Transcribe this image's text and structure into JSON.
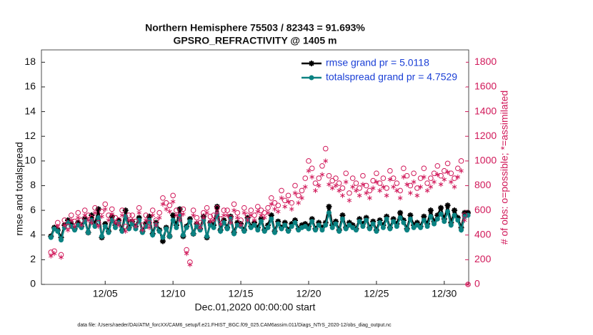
{
  "chart_data": {
    "type": "line",
    "title": "Northern Hemisphere 75503 / 82343 = 91.693%",
    "subtitle": "GPSRO_REFRACTIVITY @ 1405 m",
    "xlabel": "Dec.01,2020 00:00:00 start",
    "ylabel": "rmse and totalspread",
    "y2label": "# of obs: o=possible; *=assimilated",
    "footnote": "data file: /Users/raeder/DAI/ATM_forcXX/CAM6_setup/f.e21.FHIST_BGC.f09_025.CAM6assim.011/Diags_NTrS_2020-12/obs_diag_output.nc",
    "legend": "upper right",
    "xlim": [
      -0.7,
      30.8
    ],
    "xticks": [
      {
        "value": 4,
        "label": "12/05"
      },
      {
        "value": 9,
        "label": "12/10"
      },
      {
        "value": 14,
        "label": "12/15"
      },
      {
        "value": 19,
        "label": "12/20"
      },
      {
        "value": 24,
        "label": "12/25"
      },
      {
        "value": 29,
        "label": "12/30"
      }
    ],
    "ylim": [
      0,
      19
    ],
    "yticks": [
      0,
      2,
      4,
      6,
      8,
      10,
      12,
      14,
      16,
      18
    ],
    "y2lim": [
      0,
      1900
    ],
    "y2ticks": [
      0,
      200,
      400,
      600,
      800,
      1000,
      1200,
      1400,
      1600,
      1800
    ],
    "y2color": "#d1195a",
    "x": [
      0,
      0.25,
      0.5,
      0.75,
      1,
      1.25,
      1.5,
      1.75,
      2,
      2.25,
      2.5,
      2.75,
      3,
      3.25,
      3.5,
      3.75,
      4,
      4.25,
      4.5,
      4.75,
      5,
      5.25,
      5.5,
      5.75,
      6,
      6.25,
      6.5,
      6.75,
      7,
      7.25,
      7.5,
      7.75,
      8,
      8.25,
      8.5,
      8.75,
      9,
      9.25,
      9.5,
      9.75,
      10,
      10.25,
      10.5,
      10.75,
      11,
      11.25,
      11.5,
      11.75,
      12,
      12.25,
      12.5,
      12.75,
      13,
      13.25,
      13.5,
      13.75,
      14,
      14.25,
      14.5,
      14.75,
      15,
      15.25,
      15.5,
      15.75,
      16,
      16.25,
      16.5,
      16.75,
      17,
      17.25,
      17.5,
      17.75,
      18,
      18.25,
      18.5,
      18.75,
      19,
      19.25,
      19.5,
      19.75,
      20,
      20.25,
      20.5,
      20.75,
      21,
      21.25,
      21.5,
      21.75,
      22,
      22.25,
      22.5,
      22.75,
      23,
      23.25,
      23.5,
      23.75,
      24,
      24.25,
      24.5,
      24.75,
      25,
      25.25,
      25.5,
      25.75,
      26,
      26.25,
      26.5,
      26.75,
      27,
      27.25,
      27.5,
      27.75,
      28,
      28.25,
      28.5,
      28.75,
      29,
      29.25,
      29.5,
      29.75,
      30,
      30.25,
      30.5,
      30.75
    ],
    "series": [
      {
        "name": "rmse grand pr = 5.0118",
        "color": "#000000",
        "marker": "star",
        "axis": "y",
        "values": [
          3.9,
          4.6,
          4.4,
          3.8,
          4.8,
          5.2,
          4.9,
          4.5,
          5.0,
          4.7,
          5.3,
          4.2,
          5.6,
          4.9,
          6.1,
          3.8,
          4.9,
          4.3,
          5.5,
          4.8,
          5.2,
          4.4,
          6.0,
          4.6,
          5.1,
          4.7,
          5.4,
          4.3,
          4.9,
          5.5,
          4.1,
          5.0,
          4.4,
          3.5,
          4.6,
          3.9,
          5.6,
          4.8,
          6.1,
          3.9,
          4.7,
          5.3,
          4.1,
          4.9,
          4.5,
          5.5,
          3.8,
          5.0,
          4.8,
          6.3,
          4.4,
          5.2,
          4.6,
          5.5,
          4.2,
          5.0,
          4.9,
          4.4,
          5.4,
          4.7,
          5.0,
          4.6,
          5.3,
          4.4,
          4.8,
          5.6,
          4.3,
          5.1,
          4.6,
          5.0,
          4.4,
          4.9,
          5.2,
          4.5,
          4.8,
          4.9,
          4.7,
          5.3,
          4.5,
          5.0,
          4.6,
          5.0,
          6.3,
          4.8,
          5.1,
          4.4,
          5.6,
          4.6,
          5.0,
          4.8,
          4.5,
          5.3,
          4.9,
          5.4,
          4.6,
          5.1,
          4.4,
          5.2,
          4.8,
          5.5,
          4.6,
          5.3,
          4.9,
          5.8,
          5.2,
          4.5,
          5.6,
          4.8,
          5.0,
          4.7,
          5.5,
          4.9,
          6.0,
          5.1,
          5.6,
          6.2,
          5.3,
          6.4,
          5.0,
          6.0,
          5.4,
          4.6,
          5.8,
          5.8
        ]
      },
      {
        "name": "totalspread grand pr = 4.7529",
        "color": "#0b8282",
        "marker": "circle",
        "axis": "y",
        "values": [
          3.8,
          4.5,
          4.3,
          3.6,
          4.6,
          5.0,
          4.7,
          4.4,
          4.8,
          4.6,
          5.1,
          4.2,
          5.2,
          4.7,
          5.4,
          3.9,
          4.7,
          4.2,
          5.2,
          4.6,
          5.0,
          4.3,
          5.5,
          4.5,
          4.9,
          4.5,
          5.2,
          4.2,
          4.7,
          5.2,
          4.0,
          4.8,
          4.3,
          3.8,
          4.5,
          3.9,
          5.2,
          4.6,
          5.6,
          4.0,
          4.6,
          5.1,
          4.1,
          4.7,
          4.4,
          5.2,
          3.9,
          4.8,
          4.6,
          5.7,
          4.3,
          5.0,
          4.5,
          5.3,
          4.1,
          4.8,
          4.7,
          4.3,
          5.2,
          4.6,
          4.8,
          4.4,
          5.1,
          4.3,
          4.6,
          5.3,
          4.2,
          4.9,
          4.5,
          4.8,
          4.3,
          4.7,
          5.0,
          4.4,
          4.6,
          4.7,
          4.5,
          5.1,
          4.4,
          4.8,
          4.4,
          4.8,
          5.8,
          4.6,
          4.9,
          4.3,
          5.3,
          4.5,
          4.8,
          4.6,
          4.4,
          5.1,
          4.7,
          5.2,
          4.5,
          4.9,
          4.3,
          5.0,
          4.6,
          5.3,
          4.5,
          5.1,
          4.7,
          5.4,
          5.0,
          4.4,
          5.3,
          4.6,
          4.8,
          4.6,
          5.2,
          4.7,
          5.5,
          4.9,
          5.3,
          5.7,
          5.1,
          5.9,
          4.8,
          5.6,
          5.2,
          4.4,
          5.5,
          5.6
        ]
      },
      {
        "color": "#d1195a",
        "marker": "open-circle",
        "axis": "y2",
        "values": [
          260,
          270,
          500,
          240,
          520,
          470,
          560,
          510,
          580,
          520,
          600,
          560,
          540,
          620,
          500,
          590,
          650,
          560,
          610,
          540,
          520,
          600,
          470,
          560,
          560,
          510,
          620,
          480,
          560,
          500,
          600,
          520,
          580,
          700,
          660,
          640,
          720,
          600,
          560,
          610,
          280,
          180,
          600,
          540,
          500,
          580,
          620,
          550,
          560,
          620,
          530,
          600,
          600,
          540,
          650,
          580,
          520,
          620,
          560,
          600,
          560,
          630,
          600,
          580,
          620,
          700,
          660,
          640,
          760,
          680,
          720,
          660,
          800,
          720,
          760,
          860,
          1000,
          940,
          820,
          860,
          960,
          1100,
          880,
          840,
          860,
          820,
          780,
          900,
          740,
          860,
          820,
          780,
          880,
          800,
          760,
          840,
          900,
          820,
          860,
          780,
          920,
          860,
          820,
          760,
          940,
          880,
          800,
          900,
          780,
          860,
          940,
          820,
          860,
          900,
          960,
          880,
          920,
          980,
          900,
          860,
          940,
          1000,
          560,
          0
        ]
      },
      {
        "color": "#d1195a",
        "marker": "asterisk",
        "axis": "y2",
        "values": [
          230,
          250,
          470,
          220,
          480,
          440,
          520,
          470,
          540,
          480,
          560,
          520,
          500,
          580,
          470,
          550,
          610,
          520,
          570,
          500,
          480,
          560,
          430,
          520,
          520,
          470,
          580,
          440,
          520,
          460,
          560,
          480,
          540,
          650,
          610,
          590,
          670,
          560,
          520,
          570,
          250,
          160,
          560,
          500,
          460,
          540,
          580,
          510,
          520,
          580,
          490,
          560,
          560,
          500,
          600,
          540,
          480,
          580,
          520,
          560,
          520,
          590,
          560,
          540,
          580,
          650,
          610,
          590,
          700,
          630,
          670,
          610,
          740,
          660,
          700,
          790,
          920,
          870,
          760,
          800,
          890,
          1000,
          810,
          780,
          800,
          760,
          720,
          830,
          680,
          790,
          760,
          720,
          810,
          740,
          700,
          780,
          830,
          760,
          790,
          720,
          850,
          790,
          760,
          700,
          870,
          810,
          740,
          830,
          720,
          790,
          870,
          760,
          790,
          830,
          890,
          810,
          850,
          910,
          830,
          790,
          870,
          920,
          520,
          0
        ]
      }
    ]
  }
}
